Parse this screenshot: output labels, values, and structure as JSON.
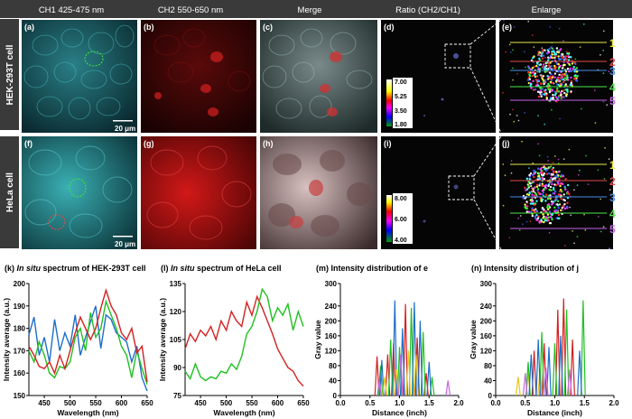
{
  "headers": [
    "CH1 425-475 nm",
    "CH2 550-650 nm",
    "Merge",
    "Ratio (CH2/CH1)",
    "Enlarge"
  ],
  "rows": [
    {
      "cell": "HEK-293T cell",
      "labels": [
        "(a)",
        "(b)",
        "(c)",
        "(d)",
        "(e)"
      ],
      "scale_bar": "20 μm",
      "colorbar": [
        "7.00",
        "5.25",
        "3.50",
        "1.80"
      ]
    },
    {
      "cell": "HeLa cell",
      "labels": [
        "(f)",
        "(g)",
        "(h)",
        "(i)",
        "(j)"
      ],
      "scale_bar": "20 μm",
      "colorbar": [
        "8.00",
        "6.00",
        "4.00"
      ]
    }
  ],
  "line_labels": [
    "1",
    "2",
    "3",
    "4",
    "5"
  ],
  "colors": {
    "header_bg": "#3a3a3a",
    "cyan": "#2fb5b8",
    "red": "#d42020",
    "green": "#21c021",
    "blue": "#1e6ec8",
    "lines": [
      "#e6e64a",
      "#e64a4a",
      "#4a8ae6",
      "#4ae64a",
      "#c864e6"
    ]
  },
  "chart_data": [
    {
      "type": "line",
      "panel": "(k)",
      "title_prefix": "(k) ",
      "title_em": "In situ",
      "title_rest": " spectrum of HEK-293T cell",
      "xlabel": "Wavelength (nm)",
      "ylabel": "Intensity average (a.u.)",
      "xlim": [
        420,
        650
      ],
      "ylim": [
        150,
        200
      ],
      "xticks": [
        450,
        500,
        550,
        600,
        650
      ],
      "yticks": [
        150,
        160,
        170,
        180,
        190,
        200
      ],
      "x": [
        420,
        430,
        440,
        450,
        460,
        470,
        480,
        490,
        500,
        510,
        520,
        530,
        540,
        550,
        560,
        570,
        580,
        590,
        600,
        610,
        620,
        630,
        640,
        650
      ],
      "series": [
        {
          "name": "blue",
          "color": "#1e6ec8",
          "values": [
            177,
            185,
            168,
            176,
            165,
            184,
            170,
            178,
            172,
            186,
            168,
            176,
            183,
            190,
            171,
            186,
            184,
            178,
            176,
            174,
            165,
            172,
            158,
            152
          ]
        },
        {
          "name": "green",
          "color": "#21c021",
          "values": [
            170,
            165,
            174,
            168,
            160,
            158,
            163,
            162,
            165,
            176,
            180,
            170,
            187,
            176,
            180,
            192,
            186,
            180,
            172,
            168,
            158,
            170,
            162,
            155
          ]
        },
        {
          "name": "red",
          "color": "#d42020",
          "values": [
            172,
            168,
            163,
            162,
            165,
            160,
            168,
            162,
            170,
            178,
            185,
            180,
            175,
            180,
            189,
            197,
            190,
            186,
            178,
            175,
            180,
            169,
            172,
            156
          ]
        }
      ]
    },
    {
      "type": "line",
      "panel": "(l)",
      "title_prefix": "(l) ",
      "title_em": "In situ",
      "title_rest": " spectrum of HeLa cell",
      "xlabel": "Wavelength (nm)",
      "ylabel": "Intensity average (a.u.)",
      "xlim": [
        420,
        650
      ],
      "ylim": [
        75,
        135
      ],
      "xticks": [
        450,
        500,
        550,
        600,
        650
      ],
      "yticks": [
        75,
        90,
        105,
        120,
        135
      ],
      "x": [
        420,
        430,
        440,
        450,
        460,
        470,
        480,
        490,
        500,
        510,
        520,
        530,
        540,
        550,
        560,
        570,
        580,
        590,
        600,
        610,
        620,
        630,
        640,
        650
      ],
      "series": [
        {
          "name": "red",
          "color": "#d42020",
          "values": [
            100,
            108,
            104,
            110,
            107,
            112,
            105,
            115,
            110,
            120,
            115,
            112,
            125,
            118,
            128,
            122,
            115,
            108,
            100,
            95,
            90,
            88,
            83,
            80
          ]
        },
        {
          "name": "green",
          "color": "#21c021",
          "values": [
            88,
            84,
            92,
            85,
            83,
            85,
            84,
            88,
            87,
            92,
            89,
            96,
            108,
            112,
            120,
            132,
            128,
            115,
            122,
            118,
            124,
            110,
            120,
            112
          ]
        }
      ]
    },
    {
      "type": "line",
      "panel": "(m)",
      "title": "(m) Intensity distribution of e",
      "xlabel": "Distance (inch)",
      "ylabel": "Gray value",
      "xlim": [
        0.0,
        2.0
      ],
      "ylim": [
        0,
        300
      ],
      "xticks": [
        "0.0",
        "0.5",
        "1.0",
        "1.5",
        "2.0"
      ],
      "yticks": [
        "0",
        "40",
        "80",
        "120",
        "160",
        "200",
        "240",
        "300"
      ],
      "ytick_values": [
        0,
        40,
        80,
        120,
        160,
        200,
        240,
        300
      ],
      "peaks": [
        {
          "color": "#d42020",
          "points": [
            [
              0.62,
              105
            ],
            [
              0.8,
              110
            ],
            [
              0.9,
              140
            ],
            [
              1.1,
              245
            ],
            [
              1.3,
              155
            ],
            [
              1.45,
              60
            ]
          ]
        },
        {
          "color": "#21c021",
          "points": [
            [
              0.68,
              80
            ],
            [
              0.85,
              150
            ],
            [
              1.0,
              130
            ],
            [
              1.2,
              235
            ],
            [
              1.4,
              170
            ],
            [
              1.55,
              50
            ]
          ]
        },
        {
          "color": "#1e6ec8",
          "points": [
            [
              0.7,
              95
            ],
            [
              0.92,
              255
            ],
            [
              1.05,
              180
            ],
            [
              1.25,
              250
            ],
            [
              1.35,
              200
            ],
            [
              1.5,
              90
            ]
          ]
        },
        {
          "color": "#e6c820",
          "points": [
            [
              0.75,
              50
            ],
            [
              0.95,
              70
            ],
            [
              1.15,
              120
            ],
            [
              1.28,
              110
            ]
          ]
        },
        {
          "color": "#c864e6",
          "points": [
            [
              0.66,
              40
            ],
            [
              1.02,
              110
            ],
            [
              1.82,
              40
            ]
          ]
        }
      ]
    },
    {
      "type": "line",
      "panel": "(n)",
      "title": "(n) Intensity distribution of j",
      "xlabel": "Distance (inch)",
      "ylabel": "Gray value",
      "xlim": [
        0.0,
        2.0
      ],
      "ylim": [
        0,
        300
      ],
      "xticks": [
        "0.0",
        "0.5",
        "1.0",
        "1.5",
        "2.0"
      ],
      "yticks": [
        "0",
        "40",
        "80",
        "120",
        "160",
        "200",
        "240",
        "300"
      ],
      "ytick_values": [
        0,
        40,
        80,
        120,
        160,
        200,
        240,
        300
      ],
      "peaks": [
        {
          "color": "#e6c820",
          "points": [
            [
              0.38,
              50
            ],
            [
              0.55,
              60
            ],
            [
              0.75,
              70
            ]
          ]
        },
        {
          "color": "#d42020",
          "points": [
            [
              0.65,
              120
            ],
            [
              0.82,
              140
            ],
            [
              1.05,
              230
            ],
            [
              1.15,
              260
            ],
            [
              1.3,
              150
            ]
          ]
        },
        {
          "color": "#21c021",
          "points": [
            [
              0.55,
              90
            ],
            [
              0.78,
              170
            ],
            [
              1.0,
              140
            ],
            [
              1.2,
              230
            ],
            [
              1.48,
              255
            ]
          ]
        },
        {
          "color": "#1e6ec8",
          "points": [
            [
              0.6,
              110
            ],
            [
              0.72,
              150
            ],
            [
              0.9,
              130
            ],
            [
              1.1,
              160
            ],
            [
              1.42,
              120
            ]
          ]
        },
        {
          "color": "#c864e6",
          "points": [
            [
              0.5,
              60
            ],
            [
              0.85,
              75
            ],
            [
              1.25,
              70
            ]
          ]
        }
      ]
    }
  ]
}
